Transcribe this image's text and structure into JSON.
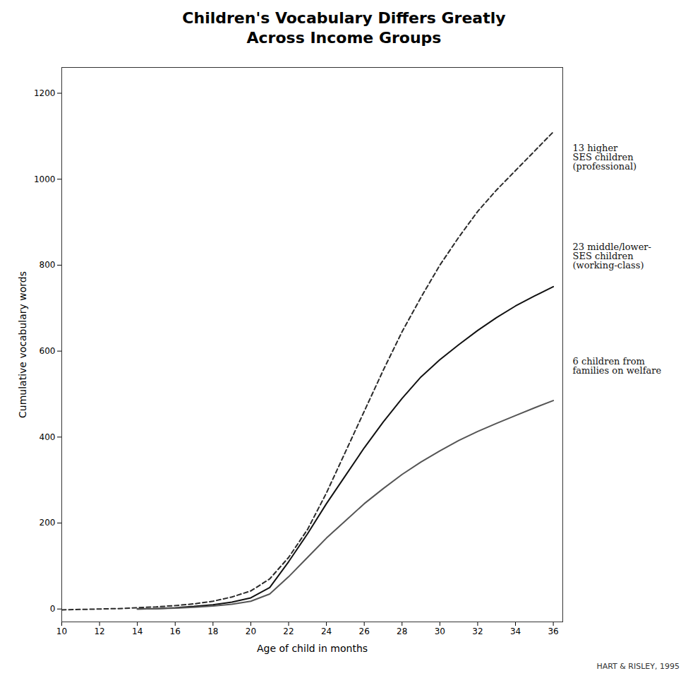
{
  "chart_data": {
    "type": "line",
    "title": "Children's Vocabulary Differs Greatly\nAcross Income Groups",
    "xlabel": "Age of child in months",
    "ylabel": "Cumulative vocabulary words",
    "xlim": [
      10,
      36.5
    ],
    "ylim": [
      -30,
      1260
    ],
    "xticks": [
      10,
      12,
      14,
      16,
      18,
      20,
      22,
      24,
      26,
      28,
      30,
      32,
      34,
      36
    ],
    "yticks": [
      0,
      200,
      400,
      600,
      800,
      1000,
      1200
    ],
    "grid": false,
    "series": [
      {
        "color": "#2a2a2a",
        "line_style": "dashed",
        "x": [
          10,
          11,
          12,
          13,
          14,
          15,
          16,
          17,
          18,
          19,
          20,
          21,
          22,
          23,
          24,
          25,
          26,
          27,
          28,
          29,
          30,
          31,
          32,
          33,
          34,
          35,
          36
        ],
        "values": [
          -2,
          -1,
          0,
          1,
          3,
          5,
          8,
          12,
          18,
          28,
          42,
          70,
          120,
          185,
          270,
          365,
          460,
          555,
          645,
          725,
          800,
          865,
          925,
          975,
          1020,
          1065,
          1110
        ]
      },
      {
        "color": "#111111",
        "line_style": "solid",
        "x": [
          14,
          15,
          16,
          17,
          18,
          19,
          20,
          21,
          22,
          23,
          24,
          25,
          26,
          27,
          28,
          29,
          30,
          31,
          32,
          33,
          34,
          35,
          36
        ],
        "values": [
          0,
          1,
          3,
          6,
          10,
          16,
          26,
          50,
          110,
          175,
          245,
          310,
          375,
          435,
          490,
          540,
          580,
          615,
          648,
          678,
          705,
          728,
          750
        ]
      },
      {
        "color": "#555555",
        "line_style": "solid",
        "x": [
          14,
          15,
          16,
          17,
          18,
          19,
          20,
          21,
          22,
          23,
          24,
          25,
          26,
          27,
          28,
          29,
          30,
          31,
          32,
          33,
          34,
          35,
          36
        ],
        "values": [
          0,
          1,
          2,
          4,
          7,
          11,
          18,
          35,
          75,
          120,
          165,
          205,
          245,
          280,
          313,
          342,
          368,
          392,
          413,
          432,
          450,
          468,
          485
        ]
      }
    ],
    "annotations": [
      {
        "text": "13 higher\nSES children\n(professional)",
        "y": 1050
      },
      {
        "text": "23 middle/lower-\nSES children\n(working-class)",
        "y": 820
      },
      {
        "text": "6 children from\nfamilies on welfare",
        "y": 565
      }
    ],
    "caption": "HART & RISLEY, 1995"
  }
}
